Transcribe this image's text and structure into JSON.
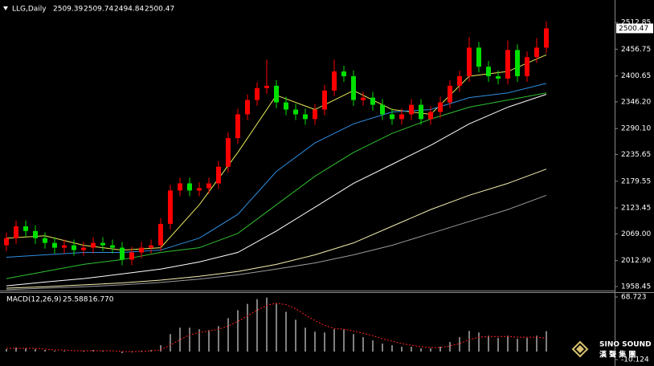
{
  "chart_data": [
    {
      "type": "candlestick",
      "title": "LLG,Daily",
      "quote": [
        2509.39,
        2509.74,
        2494.84,
        2500.47
      ],
      "up_color": "#ff0000",
      "down_color": "#00e000",
      "candles": {
        "open": [
          2045,
          2060,
          2085,
          2075,
          2060,
          2050,
          2040,
          2045,
          2035,
          2040,
          2050,
          2045,
          2040,
          2015,
          2030,
          2040,
          2045,
          2090,
          2160,
          2175,
          2160,
          2165,
          2175,
          2210,
          2270,
          2320,
          2350,
          2375,
          2380,
          2345,
          2330,
          2320,
          2310,
          2330,
          2370,
          2410,
          2400,
          2350,
          2355,
          2340,
          2320,
          2310,
          2320,
          2340,
          2310,
          2325,
          2345,
          2380,
          2400,
          2460,
          2420,
          2400,
          2395,
          2455,
          2400,
          2440,
          2460
        ],
        "high": [
          2072,
          2097,
          2097,
          2087,
          2072,
          2062,
          2057,
          2057,
          2052,
          2062,
          2062,
          2057,
          2052,
          2042,
          2052,
          2057,
          2102,
          2172,
          2187,
          2187,
          2177,
          2187,
          2222,
          2282,
          2332,
          2362,
          2387,
          2435,
          2392,
          2357,
          2342,
          2332,
          2342,
          2382,
          2435,
          2422,
          2412,
          2367,
          2367,
          2352,
          2332,
          2332,
          2352,
          2352,
          2337,
          2357,
          2392,
          2412,
          2482,
          2472,
          2432,
          2412,
          2475,
          2467,
          2452,
          2480,
          2515
        ],
        "low": [
          2033,
          2048,
          2063,
          2048,
          2038,
          2028,
          2028,
          2023,
          2023,
          2028,
          2033,
          2028,
          2003,
          2003,
          2018,
          2028,
          2033,
          2078,
          2148,
          2148,
          2148,
          2153,
          2163,
          2198,
          2258,
          2308,
          2338,
          2363,
          2333,
          2318,
          2308,
          2298,
          2298,
          2318,
          2358,
          2388,
          2338,
          2338,
          2328,
          2308,
          2298,
          2298,
          2308,
          2298,
          2298,
          2313,
          2333,
          2368,
          2388,
          2408,
          2388,
          2383,
          2383,
          2388,
          2388,
          2428,
          2448
        ],
        "close": [
          2060,
          2085,
          2075,
          2060,
          2050,
          2040,
          2045,
          2035,
          2040,
          2050,
          2045,
          2040,
          2015,
          2030,
          2040,
          2045,
          2090,
          2160,
          2175,
          2160,
          2165,
          2175,
          2210,
          2270,
          2320,
          2350,
          2375,
          2380,
          2345,
          2330,
          2320,
          2310,
          2330,
          2370,
          2410,
          2400,
          2350,
          2355,
          2340,
          2320,
          2310,
          2320,
          2340,
          2310,
          2325,
          2345,
          2380,
          2400,
          2460,
          2420,
          2400,
          2395,
          2455,
          2400,
          2440,
          2460,
          2500.47
        ]
      },
      "ma_x": [
        0,
        4,
        8,
        12,
        16,
        20,
        24,
        28,
        32,
        36,
        40,
        44,
        48,
        52,
        56
      ],
      "ma": [
        {
          "color": "#e8e85a",
          "values": [
            2060,
            2065,
            2045,
            2035,
            2040,
            2130,
            2240,
            2360,
            2330,
            2370,
            2330,
            2320,
            2400,
            2410,
            2445
          ]
        },
        {
          "color": "#2f8fe0",
          "values": [
            2020,
            2025,
            2030,
            2030,
            2035,
            2060,
            2110,
            2200,
            2260,
            2300,
            2325,
            2330,
            2355,
            2365,
            2385
          ]
        },
        {
          "color": "#30c030",
          "values": [
            1975,
            1990,
            2005,
            2015,
            2030,
            2040,
            2070,
            2130,
            2190,
            2240,
            2280,
            2310,
            2335,
            2350,
            2365
          ]
        },
        {
          "color": "#ffffff",
          "values": [
            1960,
            1968,
            1975,
            1985,
            1995,
            2010,
            2030,
            2075,
            2125,
            2175,
            2215,
            2255,
            2300,
            2335,
            2362
          ]
        },
        {
          "color": "#f5efb0",
          "values": [
            1955,
            1958,
            1962,
            1966,
            1972,
            1980,
            1990,
            2005,
            2025,
            2050,
            2085,
            2120,
            2150,
            2175,
            2205
          ]
        },
        {
          "color": "#9a9a9a",
          "values": [
            1952,
            1955,
            1958,
            1962,
            1967,
            1974,
            1983,
            1995,
            2008,
            2025,
            2045,
            2070,
            2095,
            2120,
            2150
          ]
        }
      ],
      "ylim": [
        1950,
        2555
      ],
      "yticks": [
        2512.85,
        2456.75,
        2400.65,
        {
          "value": 2346.2,
          "label": "2346.20"
        },
        {
          "value": 2290.1,
          "label": "2290.10"
        },
        2235.65,
        2179.55,
        2123.45,
        {
          "value": 2069,
          "label": "2069.00"
        },
        {
          "value": 2012.9,
          "label": "2012.90"
        },
        1958.45
      ]
    },
    {
      "type": "macd",
      "title": "MACD(12,26,9)",
      "legend_values": [
        {
          "value": 25.588,
          "label": "25.588"
        },
        {
          "value": 16.77,
          "label": "16.770"
        }
      ],
      "histogram": {
        "color": "#ffffff",
        "values": [
          3,
          5,
          4,
          3,
          2,
          1,
          1,
          0,
          1,
          2,
          1,
          0,
          -2,
          -1,
          1,
          2,
          8,
          22,
          30,
          30,
          28,
          27,
          32,
          42,
          52,
          60,
          66,
          68,
          60,
          50,
          40,
          30,
          25,
          24,
          28,
          28,
          22,
          18,
          14,
          10,
          8,
          6,
          6,
          4,
          4,
          6,
          12,
          18,
          26,
          24,
          20,
          17,
          20,
          16,
          17,
          20,
          25.588
        ]
      },
      "signal": {
        "color": "#ff2020",
        "values": [
          4,
          4,
          4,
          4,
          3,
          2,
          2,
          1,
          1,
          1,
          1,
          1,
          0,
          0,
          0,
          1,
          2,
          8,
          15,
          21,
          24,
          26,
          28,
          32,
          38,
          45,
          52,
          58,
          61,
          59,
          54,
          46,
          39,
          33,
          29,
          28,
          26,
          23,
          20,
          16,
          13,
          10,
          8,
          6,
          5,
          5,
          7,
          10,
          15,
          18,
          19,
          19,
          19,
          18,
          18,
          18,
          16.77
        ]
      },
      "ylim": [
        -14.17,
        73.78
      ],
      "yticks": [
        68.723,
        -10.124
      ]
    }
  ],
  "watermark": {
    "brand": "SINO SOUND",
    "chinese": "漢 聲 集 團"
  }
}
